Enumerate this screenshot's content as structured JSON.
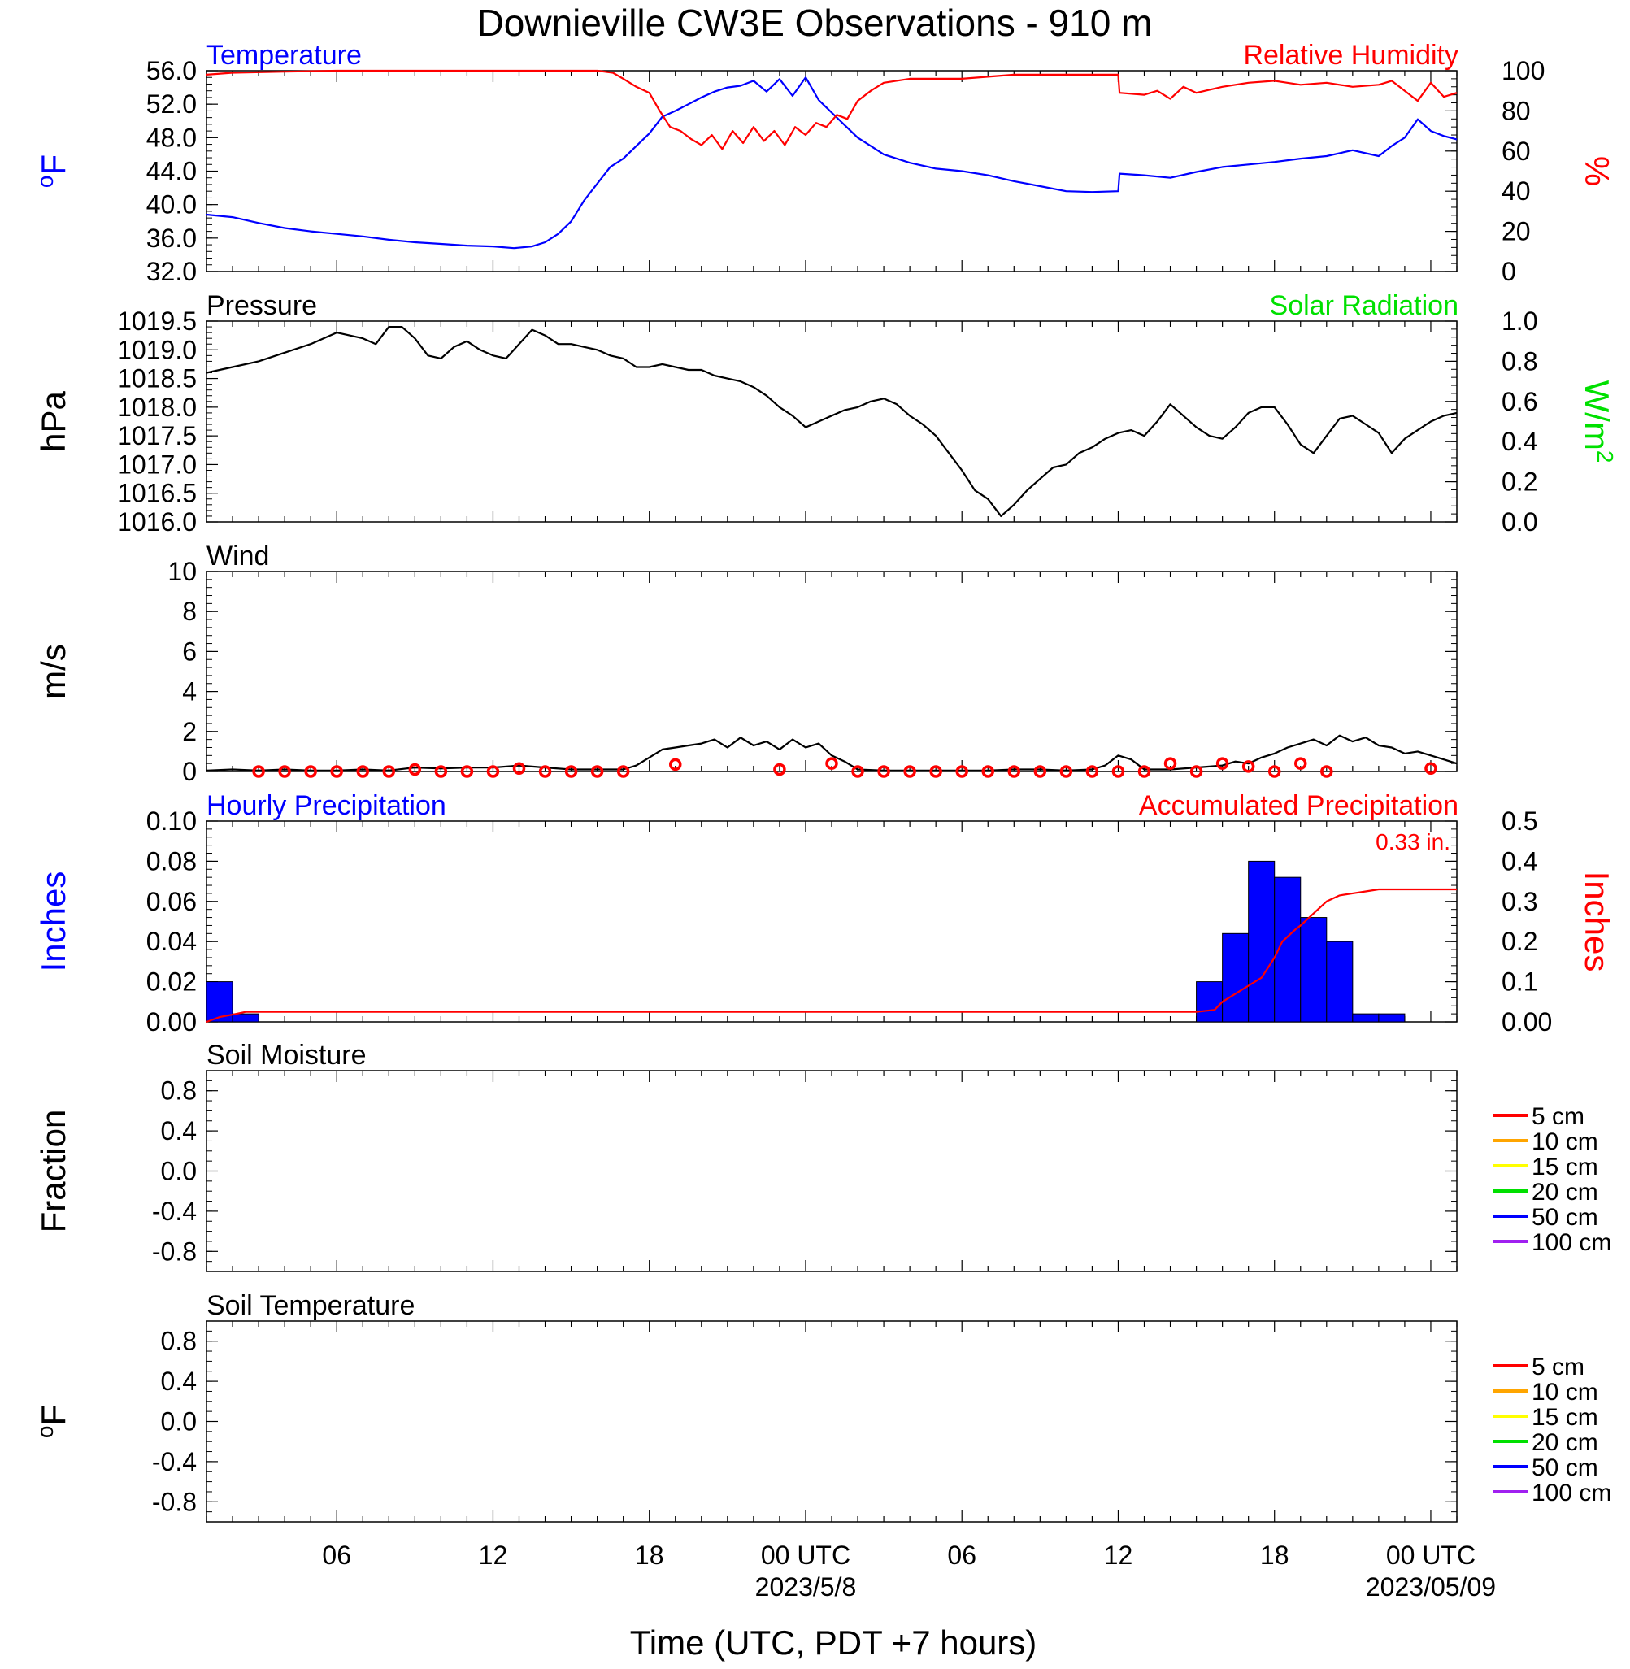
{
  "title": "Downieville CW3E Observations - 910 m",
  "xlabel": "Time (UTC, PDT +7 hours)",
  "colors": {
    "blue": "#0000ff",
    "red": "#ff0000",
    "green": "#00e000",
    "orange": "#ffa500",
    "yellow": "#ffff00",
    "purple": "#a020f0",
    "black": "#000000"
  },
  "x_ticks": [
    {
      "t": 6,
      "label": "06",
      "sub": ""
    },
    {
      "t": 12,
      "label": "12",
      "sub": ""
    },
    {
      "t": 18,
      "label": "18",
      "sub": ""
    },
    {
      "t": 24,
      "label": "00 UTC",
      "sub": "2023/5/8"
    },
    {
      "t": 30,
      "label": "06",
      "sub": ""
    },
    {
      "t": 36,
      "label": "12",
      "sub": ""
    },
    {
      "t": 42,
      "label": "18",
      "sub": ""
    },
    {
      "t": 48,
      "label": "00 UTC",
      "sub": "2023/05/09"
    }
  ],
  "chart_data": [
    {
      "type": "line",
      "title_left": "Temperature",
      "title_right": "Relative Humidity",
      "ylabel_left": "oF",
      "ylabel_right": "%",
      "ylim_left": [
        32,
        56
      ],
      "ylim_right": [
        0,
        100
      ],
      "yticks_left": [
        "32.0",
        "36.0",
        "40.0",
        "44.0",
        "48.0",
        "52.0",
        "56.0"
      ],
      "yticks_right": [
        "0",
        "20",
        "40",
        "60",
        "80",
        "100"
      ],
      "xlim": [
        1,
        49
      ],
      "series": [
        {
          "name": "Temperature",
          "axis": "left",
          "color": "#0000ff",
          "x": [
            1,
            2,
            3,
            4,
            5,
            6,
            7,
            8,
            9,
            10,
            11,
            12,
            12.8,
            13.5,
            14,
            14.5,
            15,
            15.5,
            16,
            16.5,
            17,
            17.5,
            18,
            18.5,
            19,
            19.5,
            20,
            20.5,
            21,
            21.5,
            22,
            22.5,
            23,
            23.5,
            24,
            24.5,
            25,
            25.5,
            26,
            26.5,
            27,
            28,
            29,
            30,
            31,
            32,
            33,
            34,
            35,
            36,
            36.05,
            37,
            38,
            39,
            40,
            41,
            42,
            43,
            44,
            45,
            46,
            46.5,
            47,
            47.5,
            48,
            48.5,
            49
          ],
          "y": [
            38.8,
            38.5,
            37.8,
            37.2,
            36.8,
            36.5,
            36.2,
            35.8,
            35.5,
            35.3,
            35.1,
            35.0,
            34.8,
            35.0,
            35.5,
            36.5,
            38.0,
            40.5,
            42.5,
            44.5,
            45.5,
            47.0,
            48.5,
            50.5,
            51.2,
            52.0,
            52.8,
            53.5,
            54.0,
            54.2,
            54.8,
            53.5,
            55.0,
            53.0,
            55.2,
            52.5,
            51.0,
            49.5,
            48.0,
            47.0,
            46.0,
            45.0,
            44.3,
            44.0,
            43.5,
            42.8,
            42.2,
            41.6,
            41.5,
            41.6,
            43.7,
            43.5,
            43.2,
            43.9,
            44.5,
            44.8,
            45.1,
            45.5,
            45.8,
            46.5,
            45.8,
            47.0,
            48.0,
            50.2,
            48.8,
            48.2,
            47.8
          ]
        },
        {
          "name": "Relative Humidity",
          "axis": "right",
          "color": "#ff0000",
          "x": [
            1,
            2,
            4,
            6,
            8,
            10,
            12,
            14,
            16,
            16.6,
            17,
            17.5,
            18,
            18.4,
            18.8,
            19.2,
            19.6,
            20,
            20.4,
            20.8,
            21.2,
            21.6,
            22,
            22.4,
            22.8,
            23.2,
            23.6,
            24,
            24.4,
            24.8,
            25.2,
            25.6,
            26,
            26.5,
            27,
            28,
            29,
            30,
            31,
            32,
            33,
            34,
            35,
            36,
            36.05,
            37,
            37.5,
            38,
            38.5,
            39,
            40,
            41,
            42,
            43,
            44,
            45,
            46,
            46.5,
            47,
            47.5,
            48,
            48.5,
            49
          ],
          "y": [
            98,
            99,
            99.5,
            100,
            100,
            100,
            100,
            100,
            100,
            99,
            96,
            92,
            89,
            80,
            72,
            70,
            66,
            63,
            68,
            61,
            70,
            64,
            72,
            65,
            70,
            63,
            72,
            68,
            74,
            72,
            78,
            76,
            85,
            90,
            94,
            96,
            96,
            96,
            97,
            98,
            98,
            98,
            98,
            98,
            89,
            88,
            90,
            86,
            92,
            89,
            92,
            94,
            95,
            93,
            94,
            92,
            93,
            95,
            90,
            85,
            94,
            87,
            89
          ]
        }
      ]
    },
    {
      "type": "line",
      "title_left": "Pressure",
      "title_right": "Solar Radiation",
      "ylabel_left": "hPa",
      "ylabel_right": "W/m2",
      "ylim_left": [
        1016.0,
        1019.5
      ],
      "ylim_right": [
        0,
        1
      ],
      "yticks_left": [
        "1016.0",
        "1016.5",
        "1017.0",
        "1017.5",
        "1018.0",
        "1018.5",
        "1019.0",
        "1019.5"
      ],
      "yticks_right": [
        "0.0",
        "0.2",
        "0.4",
        "0.6",
        "0.8",
        "1.0"
      ],
      "xlim": [
        1,
        49
      ],
      "series": [
        {
          "name": "Pressure",
          "axis": "left",
          "color": "#000000",
          "x": [
            1,
            2,
            3,
            4,
            5,
            6,
            7,
            7.5,
            8,
            8.5,
            9,
            9.5,
            10,
            10.5,
            11,
            11.5,
            12,
            12.5,
            13,
            13.5,
            14,
            14.5,
            15,
            15.5,
            16,
            16.5,
            17,
            17.5,
            18,
            18.5,
            19,
            19.5,
            20,
            20.5,
            21,
            21.5,
            22,
            22.5,
            23,
            23.5,
            24,
            24.5,
            25,
            25.5,
            26,
            26.5,
            27,
            27.5,
            28,
            28.5,
            29,
            29.5,
            30,
            30.5,
            31,
            31.5,
            32,
            32.5,
            33,
            33.5,
            34,
            34.5,
            35,
            35.5,
            36,
            36.5,
            37,
            37.5,
            38,
            38.5,
            39,
            39.5,
            40,
            40.5,
            41,
            41.5,
            42,
            42.5,
            43,
            43.5,
            44,
            44.5,
            45,
            45.5,
            46,
            46.5,
            47,
            47.5,
            48,
            48.5,
            49
          ],
          "y": [
            1018.6,
            1018.7,
            1018.8,
            1018.95,
            1019.1,
            1019.3,
            1019.2,
            1019.1,
            1019.4,
            1019.4,
            1019.2,
            1018.9,
            1018.85,
            1019.05,
            1019.15,
            1019.0,
            1018.9,
            1018.85,
            1019.1,
            1019.35,
            1019.25,
            1019.1,
            1019.1,
            1019.05,
            1019.0,
            1018.9,
            1018.85,
            1018.7,
            1018.7,
            1018.75,
            1018.7,
            1018.65,
            1018.65,
            1018.55,
            1018.5,
            1018.45,
            1018.35,
            1018.2,
            1018.0,
            1017.85,
            1017.65,
            1017.75,
            1017.85,
            1017.95,
            1018.0,
            1018.1,
            1018.15,
            1018.05,
            1017.85,
            1017.7,
            1017.5,
            1017.2,
            1016.9,
            1016.55,
            1016.4,
            1016.1,
            1016.3,
            1016.55,
            1016.75,
            1016.95,
            1017.0,
            1017.2,
            1017.3,
            1017.45,
            1017.55,
            1017.6,
            1017.5,
            1017.75,
            1018.05,
            1017.85,
            1017.65,
            1017.5,
            1017.45,
            1017.65,
            1017.9,
            1018.0,
            1018.0,
            1017.7,
            1017.35,
            1017.2,
            1017.5,
            1017.8,
            1017.85,
            1017.7,
            1017.55,
            1017.2,
            1017.45,
            1017.6,
            1017.75,
            1017.85,
            1017.9
          ]
        }
      ]
    },
    {
      "type": "line",
      "title_left": "Wind",
      "ylabel_left": "m/s",
      "ylim_left": [
        0,
        10
      ],
      "yticks_left": [
        "0",
        "2",
        "4",
        "6",
        "8",
        "10"
      ],
      "xlim": [
        1,
        49
      ],
      "series": [
        {
          "name": "Wind",
          "axis": "left",
          "color": "#000000",
          "x": [
            1,
            2,
            3,
            4,
            5,
            6,
            7,
            8,
            9,
            10,
            11,
            12,
            13,
            14,
            15,
            16,
            17,
            17.5,
            18,
            18.5,
            19,
            19.5,
            20,
            20.5,
            21,
            21.5,
            22,
            22.5,
            23,
            23.5,
            24,
            24.5,
            25,
            25.5,
            26,
            27,
            28,
            29,
            30,
            31,
            32,
            33,
            34,
            35,
            35.5,
            36,
            36.5,
            37,
            38,
            39,
            40,
            40.5,
            41,
            41.5,
            42,
            42.5,
            43,
            43.5,
            44,
            44.5,
            45,
            45.5,
            46,
            46.5,
            47,
            47.5,
            48,
            48.5,
            49
          ],
          "y": [
            0.05,
            0.1,
            0.05,
            0.1,
            0.05,
            0.05,
            0.1,
            0.05,
            0.2,
            0.15,
            0.2,
            0.2,
            0.3,
            0.2,
            0.1,
            0.1,
            0.1,
            0.3,
            0.7,
            1.1,
            1.2,
            1.3,
            1.4,
            1.6,
            1.2,
            1.7,
            1.3,
            1.5,
            1.1,
            1.6,
            1.2,
            1.4,
            0.8,
            0.5,
            0.1,
            0.05,
            0.05,
            0.05,
            0.05,
            0.05,
            0.1,
            0.1,
            0.05,
            0.1,
            0.3,
            0.8,
            0.6,
            0.1,
            0.1,
            0.2,
            0.3,
            0.5,
            0.4,
            0.7,
            0.9,
            1.2,
            1.4,
            1.6,
            1.3,
            1.8,
            1.5,
            1.7,
            1.3,
            1.2,
            0.9,
            1.0,
            0.8,
            0.6,
            0.4
          ]
        },
        {
          "name": "Wind barbs",
          "axis": "left",
          "color": "#ff0000",
          "x": [
            3,
            4,
            5,
            6,
            7,
            8,
            9,
            10,
            11,
            12,
            13,
            14,
            15,
            16,
            17,
            19,
            23,
            25,
            26,
            27,
            28,
            29,
            30,
            31,
            32,
            33,
            34,
            35,
            36,
            37,
            38,
            39,
            40,
            41,
            42,
            43,
            44,
            48
          ],
          "y": [
            0,
            0,
            0,
            0,
            0,
            0,
            0.1,
            0,
            0,
            0,
            0.15,
            0,
            0,
            0,
            0,
            0.35,
            0.1,
            0.4,
            0,
            0,
            0,
            0,
            0,
            0,
            0,
            0,
            0,
            0,
            0,
            0,
            0.4,
            0,
            0.4,
            0.25,
            0,
            0.4,
            0,
            0.15
          ]
        }
      ]
    },
    {
      "type": "bar",
      "title_left": "Hourly Precipitation",
      "title_right": "Accumulated Precipitation",
      "annotation": "0.33 in.",
      "ylabel_left": "Inches",
      "ylabel_right": "Inches",
      "ylim_left": [
        0,
        0.1
      ],
      "ylim_right": [
        0,
        0.5
      ],
      "yticks_left": [
        "0.00",
        "0.02",
        "0.04",
        "0.06",
        "0.08",
        "0.10"
      ],
      "yticks_right": [
        "0.00",
        "0.1",
        "0.2",
        "0.3",
        "0.4",
        "0.5"
      ],
      "xlim": [
        1,
        49
      ],
      "series": [
        {
          "name": "Hourly Precipitation",
          "axis": "left",
          "color": "#0000ff",
          "x": [
            1,
            2,
            39,
            40,
            41,
            42,
            43,
            44,
            45,
            46
          ],
          "y": [
            0.02,
            0.004,
            0.02,
            0.044,
            0.08,
            0.072,
            0.052,
            0.04,
            0.004,
            0.004
          ]
        },
        {
          "name": "Accumulated Precipitation",
          "axis": "right",
          "color": "#ff0000",
          "x": [
            1,
            1.5,
            2,
            2.5,
            39,
            39.7,
            40,
            40.5,
            41,
            41.5,
            42,
            42.3,
            42.8,
            43,
            43.5,
            44,
            44.5,
            45,
            45.5,
            46,
            47,
            48,
            49
          ],
          "y": [
            0,
            0.012,
            0.018,
            0.025,
            0.025,
            0.03,
            0.05,
            0.07,
            0.09,
            0.11,
            0.16,
            0.2,
            0.23,
            0.24,
            0.27,
            0.3,
            0.315,
            0.32,
            0.325,
            0.33,
            0.33,
            0.33,
            0.33
          ]
        }
      ]
    },
    {
      "type": "line",
      "title_left": "Soil Moisture",
      "ylabel_left": "Fraction",
      "ylim_left": [
        -1,
        1
      ],
      "yticks_left": [
        "-0.8",
        "-0.4",
        "0.0",
        "0.4",
        "0.8"
      ],
      "xlim": [
        1,
        49
      ],
      "legend": [
        {
          "label": "5 cm",
          "color": "#ff0000"
        },
        {
          "label": "10 cm",
          "color": "#ffa500"
        },
        {
          "label": "15 cm",
          "color": "#ffff00"
        },
        {
          "label": "20 cm",
          "color": "#00e000"
        },
        {
          "label": "50 cm",
          "color": "#0000ff"
        },
        {
          "label": "100 cm",
          "color": "#a020f0"
        }
      ],
      "series": []
    },
    {
      "type": "line",
      "title_left": "Soil Temperature",
      "ylabel_left": "oF",
      "ylim_left": [
        -1,
        1
      ],
      "yticks_left": [
        "-0.8",
        "-0.4",
        "0.0",
        "0.4",
        "0.8"
      ],
      "xlim": [
        1,
        49
      ],
      "legend": [
        {
          "label": "5 cm",
          "color": "#ff0000"
        },
        {
          "label": "10 cm",
          "color": "#ffa500"
        },
        {
          "label": "15 cm",
          "color": "#ffff00"
        },
        {
          "label": "20 cm",
          "color": "#00e000"
        },
        {
          "label": "50 cm",
          "color": "#0000ff"
        },
        {
          "label": "100 cm",
          "color": "#a020f0"
        }
      ],
      "series": []
    }
  ]
}
